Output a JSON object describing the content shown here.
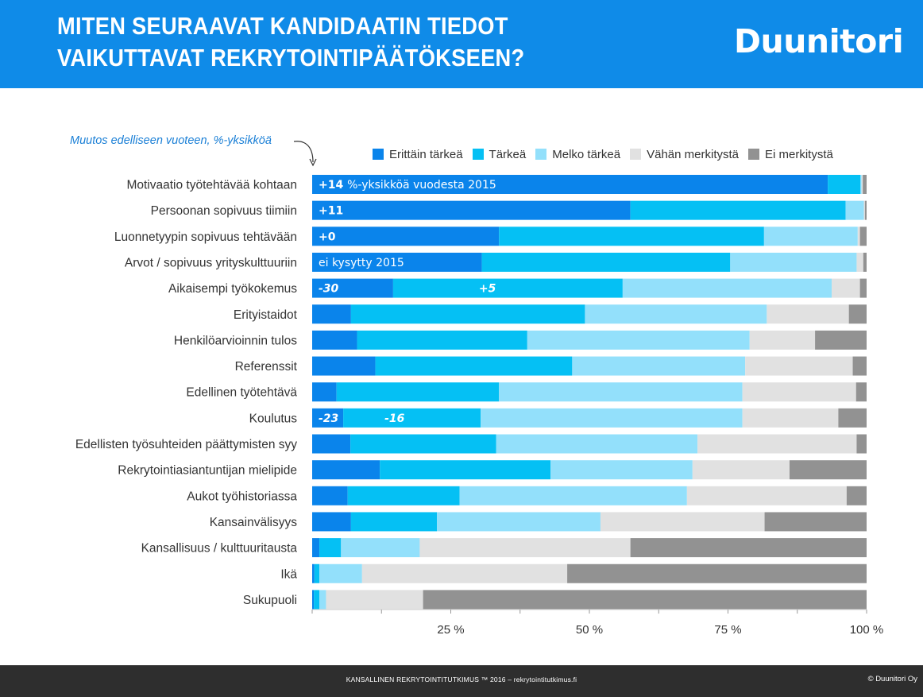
{
  "header": {
    "title": "MITEN SEURAAVAT KANDIDAATIN TIEDOT VAIKUTTAVAT REKRYTOINTIPÄÄTÖKSEEN?",
    "brand": "Duunitori",
    "background": "#0f8be8"
  },
  "note": "Muutos edelliseen vuoteen, %-yksikköä",
  "legend": [
    {
      "label": "Erittäin tärkeä",
      "color": "#0a84eb"
    },
    {
      "label": "Tärkeä",
      "color": "#05c0f4"
    },
    {
      "label": "Melko tärkeä",
      "color": "#93e0fb"
    },
    {
      "label": "Vähän merkitystä",
      "color": "#e1e1e1"
    },
    {
      "label": "Ei merkitystä",
      "color": "#929292"
    }
  ],
  "chart_data": {
    "type": "bar",
    "orientation": "horizontal",
    "stacked": true,
    "xlim": [
      0,
      100
    ],
    "xticks": [
      25,
      50,
      75,
      100
    ],
    "xtick_labels": [
      "25 %",
      "50 %",
      "75 %",
      "100 %"
    ],
    "categories": [
      "Motivaatio työtehtävää kohtaan",
      "Persoonan sopivuus tiimiin",
      "Luonnetyypin sopivuus tehtävään",
      "Arvot / sopivuus yrityskulttuuriin",
      "Aikaisempi työkokemus",
      "Erityistaidot",
      "Henkilöarvioinnin tulos",
      "Referenssit",
      "Edellinen työtehtävä",
      "Koulutus",
      "Edellisten työsuhteiden päättymisten syy",
      "Rekrytointiasiantuntijan mielipide",
      "Aukot työhistoriassa",
      "Kansainvälisyys",
      "Kansallisuus / kulttuuritausta",
      "Ikä",
      "Sukupuoli"
    ],
    "series": [
      {
        "name": "Erittäin tärkeä",
        "values": [
          93.0,
          57.4,
          33.7,
          30.6,
          14.6,
          7.0,
          8.1,
          11.4,
          4.4,
          5.6,
          6.9,
          12.2,
          6.4,
          7.0,
          1.3,
          0.4,
          0.3
        ]
      },
      {
        "name": "Tärkeä",
        "values": [
          5.9,
          38.8,
          47.8,
          44.8,
          41.4,
          42.2,
          30.7,
          35.5,
          29.3,
          24.8,
          26.3,
          30.8,
          20.2,
          15.5,
          3.9,
          0.9,
          1.0
        ]
      },
      {
        "name": "Melko tärkeä",
        "values": [
          0.2,
          3.3,
          16.9,
          22.8,
          37.7,
          32.8,
          40.1,
          31.2,
          43.9,
          47.2,
          36.3,
          25.6,
          41.0,
          29.5,
          14.2,
          7.7,
          1.2
        ]
      },
      {
        "name": "Vähän merkitystä",
        "values": [
          0.2,
          0.2,
          0.4,
          1.2,
          5.1,
          14.8,
          11.8,
          19.4,
          20.5,
          17.3,
          28.7,
          17.5,
          28.8,
          29.6,
          38.0,
          37.0,
          17.5
        ]
      },
      {
        "name": "Ei merkitystä",
        "values": [
          0.7,
          0.3,
          1.2,
          0.6,
          1.2,
          3.2,
          9.3,
          2.5,
          1.9,
          5.1,
          1.8,
          13.9,
          3.6,
          18.4,
          42.6,
          54.0,
          80.0
        ]
      }
    ],
    "annotations": [
      {
        "row": 0,
        "segment": 0,
        "text": "+14 %-yksikköä vuodesta 2015"
      },
      {
        "row": 1,
        "segment": 0,
        "text": "+11"
      },
      {
        "row": 2,
        "segment": 0,
        "text": "+0"
      },
      {
        "row": 3,
        "segment": 0,
        "text": "ei kysytty 2015"
      },
      {
        "row": 4,
        "segment": 0,
        "text": "-30"
      },
      {
        "row": 4,
        "segment": 1,
        "text": "+5"
      },
      {
        "row": 9,
        "segment": 0,
        "text": "-23"
      },
      {
        "row": 9,
        "segment": 1,
        "text": "-16"
      }
    ]
  },
  "footer": {
    "center": "KANSALLINEN REKRYTOINTITUTKIMUS ™ 2016 – rekrytointitutkimus.fi",
    "right": "© Duunitori Oy"
  }
}
